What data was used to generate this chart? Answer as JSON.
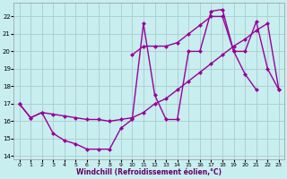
{
  "xlabel": "Windchill (Refroidissement éolien,°C)",
  "bg_color": "#c8eef0",
  "grid_color": "#aacccc",
  "line_color": "#990099",
  "xlim": [
    -0.5,
    23.5
  ],
  "ylim": [
    13.8,
    22.8
  ],
  "xticks": [
    0,
    1,
    2,
    3,
    4,
    5,
    6,
    7,
    8,
    9,
    10,
    11,
    12,
    13,
    14,
    15,
    16,
    17,
    18,
    19,
    20,
    21,
    22,
    23
  ],
  "yticks": [
    14,
    15,
    16,
    17,
    18,
    19,
    20,
    21,
    22
  ],
  "line1_x": [
    0,
    1,
    2,
    3,
    4,
    5,
    6,
    7,
    8,
    9,
    10,
    11,
    12,
    13,
    14,
    15,
    16,
    17,
    18,
    19,
    20,
    21
  ],
  "line1_y": [
    17.0,
    16.2,
    16.5,
    15.3,
    14.9,
    14.7,
    14.4,
    14.4,
    14.4,
    15.6,
    16.1,
    21.6,
    17.5,
    16.1,
    16.1,
    20.0,
    20.0,
    22.3,
    22.4,
    20.0,
    18.7,
    17.8
  ],
  "line2_x": [
    0,
    1,
    2,
    3,
    4,
    5,
    6,
    7,
    8,
    9,
    10,
    11,
    12,
    13,
    14,
    15,
    16,
    17,
    18,
    19,
    20,
    21,
    22,
    23
  ],
  "line2_y": [
    17.0,
    16.2,
    16.5,
    16.4,
    16.3,
    16.2,
    16.1,
    16.1,
    16.0,
    16.1,
    16.2,
    16.5,
    17.0,
    17.3,
    17.8,
    18.3,
    18.8,
    19.3,
    19.8,
    20.3,
    20.7,
    21.2,
    21.6,
    17.8
  ],
  "line3_x": [
    10,
    11,
    12,
    13,
    14,
    15,
    16,
    17,
    18,
    19,
    20,
    21,
    22,
    23
  ],
  "line3_y": [
    19.8,
    20.3,
    20.3,
    20.3,
    20.5,
    21.0,
    21.5,
    22.0,
    22.0,
    20.0,
    20.0,
    21.7,
    19.0,
    17.8
  ],
  "markersize": 2.5,
  "linewidth": 1.0
}
